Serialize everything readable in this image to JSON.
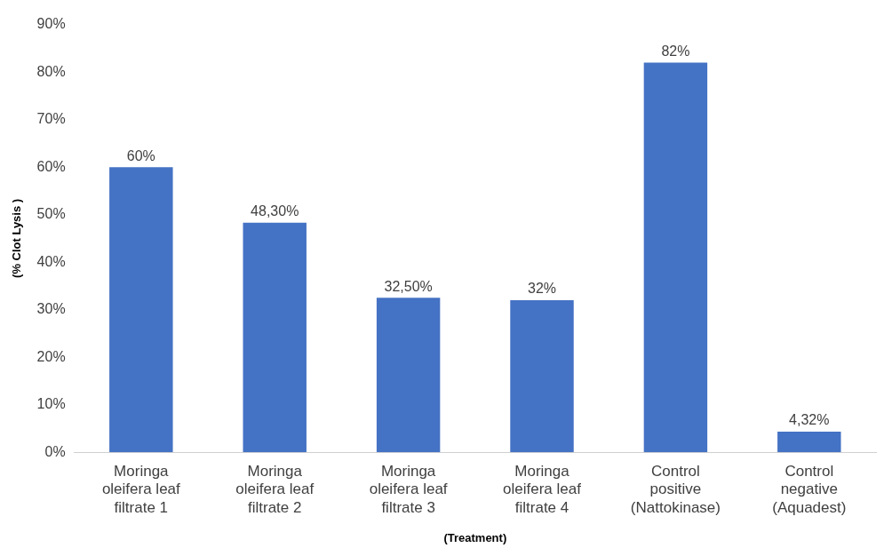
{
  "chart_data": {
    "type": "bar",
    "xlabel": "(Treatment)",
    "ylabel": "(% Clot Lysis )",
    "categories": [
      "Moringa oleifera leaf filtrate 1",
      "Moringa oleifera leaf filtrate 2",
      "Moringa oleifera leaf filtrate 3",
      "Moringa oleifera leaf filtrate 4",
      "Control positive (Nattokinase)",
      "Control negative (Aquadest)"
    ],
    "values": [
      60,
      48.3,
      32.5,
      32,
      82,
      4.32
    ],
    "value_labels": [
      "60%",
      "48,30%",
      "32,50%",
      "32%",
      "82%",
      "4,32%"
    ],
    "color": "#4472c4",
    "ylim": [
      0,
      90
    ],
    "yticks": [
      {
        "value": 0,
        "label": "0%"
      },
      {
        "value": 10,
        "label": "10%"
      },
      {
        "value": 20,
        "label": "20%"
      },
      {
        "value": 30,
        "label": "30%"
      },
      {
        "value": 40,
        "label": "40%"
      },
      {
        "value": 50,
        "label": "50%"
      },
      {
        "value": 60,
        "label": "60%"
      },
      {
        "value": 70,
        "label": "70%"
      },
      {
        "value": 80,
        "label": "80%"
      },
      {
        "value": 90,
        "label": "90%"
      }
    ],
    "grid": false,
    "legend": false
  }
}
